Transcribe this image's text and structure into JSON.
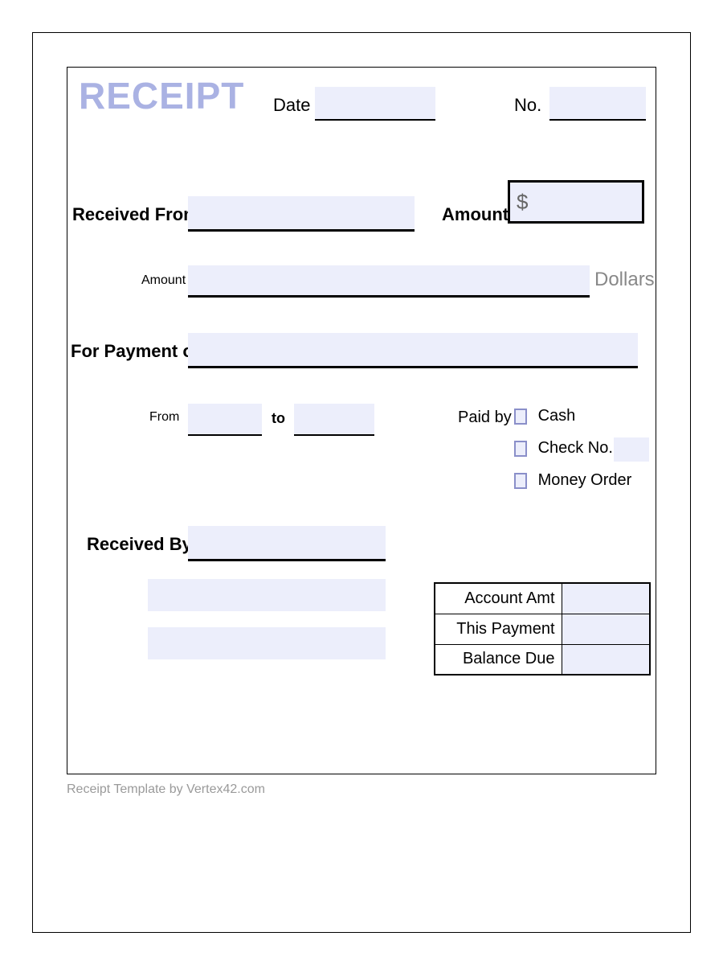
{
  "title": "RECEIPT",
  "colors": {
    "title": "#aab2e3",
    "field_bg": "#eceefb",
    "checkbox_border": "#8a8fc9",
    "footer_text": "#9a9a9a",
    "line": "#000000",
    "background": "#ffffff",
    "muted_text": "#888888"
  },
  "typography": {
    "title_fontsize": 46,
    "label_bold_fontsize": 22,
    "label_small_fontsize": 16,
    "footer_fontsize": 16
  },
  "header": {
    "date_label": "Date",
    "date_value": "",
    "no_label": "No.",
    "no_value": ""
  },
  "received_from": {
    "label": "Received From",
    "value": "",
    "amount_label": "Amount",
    "amount_prefix": "$",
    "amount_value": ""
  },
  "amount_words": {
    "label": "Amount",
    "value": "",
    "suffix": "Dollars"
  },
  "payment_of": {
    "label": "For Payment of",
    "value": ""
  },
  "period": {
    "from_label": "From",
    "from_value": "",
    "to_label": "to",
    "to_value": ""
  },
  "paid_by": {
    "label": "Paid by",
    "options": [
      {
        "label": "Cash",
        "checked": false
      },
      {
        "label": "Check No.",
        "checked": false,
        "value": ""
      },
      {
        "label": "Money Order",
        "checked": false
      }
    ]
  },
  "received_by": {
    "label": "Received By",
    "value": "",
    "line2": "",
    "line3": ""
  },
  "totals": {
    "rows": [
      {
        "label": "Account Amt",
        "value": ""
      },
      {
        "label": "This Payment",
        "value": ""
      },
      {
        "label": "Balance Due",
        "value": ""
      }
    ]
  },
  "footer": "Receipt Template by Vertex42.com"
}
